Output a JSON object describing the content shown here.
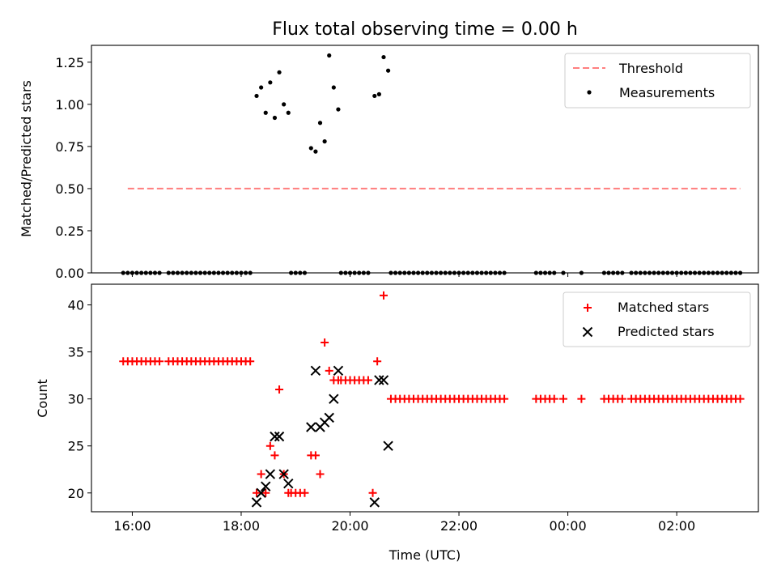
{
  "chart_data": [
    {
      "panel": "top",
      "type": "scatter",
      "title": "Flux total observing time = 0.00 h",
      "xlabel": "",
      "ylabel": "Matched/Predicted stars",
      "ylim": [
        0,
        1.35
      ],
      "yticks": [
        "0.00",
        "0.25",
        "0.50",
        "0.75",
        "1.00",
        "1.25"
      ],
      "legend_position": "top-right",
      "series": [
        {
          "name": "Threshold",
          "kind": "line",
          "color": "#ff7f7f",
          "style": "dashed",
          "x": [
            "15:55",
            "03:10"
          ],
          "y": [
            0.5,
            0.5
          ]
        },
        {
          "name": "Measurements",
          "kind": "dots",
          "color": "#000000",
          "points": [
            [
              "18:17",
              1.05
            ],
            [
              "18:22",
              1.1
            ],
            [
              "18:27",
              0.95
            ],
            [
              "18:32",
              1.13
            ],
            [
              "18:37",
              0.92
            ],
            [
              "18:42",
              1.19
            ],
            [
              "18:47",
              1.0
            ],
            [
              "18:52",
              0.95
            ],
            [
              "19:17",
              0.74
            ],
            [
              "19:22",
              0.72
            ],
            [
              "19:27",
              0.89
            ],
            [
              "19:32",
              0.78
            ],
            [
              "19:37",
              1.29
            ],
            [
              "19:42",
              1.1
            ],
            [
              "19:47",
              0.97
            ],
            [
              "20:27",
              1.05
            ],
            [
              "20:32",
              1.06
            ],
            [
              "20:37",
              1.28
            ],
            [
              "20:42",
              1.2
            ]
          ],
          "zero_times": [
            "15:50",
            "15:55",
            "16:00",
            "16:05",
            "16:10",
            "16:15",
            "16:20",
            "16:25",
            "16:30",
            "16:40",
            "16:45",
            "16:50",
            "16:55",
            "17:00",
            "17:05",
            "17:10",
            "17:15",
            "17:20",
            "17:25",
            "17:30",
            "17:35",
            "17:40",
            "17:45",
            "17:50",
            "17:55",
            "18:00",
            "18:05",
            "18:10",
            "18:55",
            "19:00",
            "19:05",
            "19:10",
            "19:50",
            "19:55",
            "20:00",
            "20:05",
            "20:10",
            "20:15",
            "20:20",
            "20:45",
            "20:50",
            "20:55",
            "21:00",
            "21:05",
            "21:10",
            "21:15",
            "21:20",
            "21:25",
            "21:30",
            "21:35",
            "21:40",
            "21:45",
            "21:50",
            "21:55",
            "22:00",
            "22:05",
            "22:10",
            "22:15",
            "22:20",
            "22:25",
            "22:30",
            "22:35",
            "22:40",
            "22:45",
            "22:50",
            "23:25",
            "23:30",
            "23:35",
            "23:40",
            "23:45",
            "23:55",
            "00:15",
            "00:40",
            "00:45",
            "00:50",
            "00:55",
            "01:00",
            "01:10",
            "01:15",
            "01:20",
            "01:25",
            "01:30",
            "01:35",
            "01:40",
            "01:45",
            "01:50",
            "01:55",
            "02:00",
            "02:05",
            "02:10",
            "02:15",
            "02:20",
            "02:25",
            "02:30",
            "02:35",
            "02:40",
            "02:45",
            "02:50",
            "02:55",
            "03:00",
            "03:05",
            "03:10"
          ]
        }
      ]
    },
    {
      "panel": "bottom",
      "type": "scatter",
      "title": "",
      "xlabel": "Time (UTC)",
      "ylabel": "Count",
      "xlim": [
        "15:15",
        "03:30"
      ],
      "xticks": [
        "16:00",
        "18:00",
        "20:00",
        "22:00",
        "00:00",
        "02:00"
      ],
      "ylim": [
        18,
        42.2
      ],
      "yticks": [
        "20",
        "25",
        "30",
        "35",
        "40"
      ],
      "legend_position": "top-right",
      "series": [
        {
          "name": "Matched stars",
          "marker": "plus",
          "color": "#ff0000",
          "points": [
            [
              "15:50",
              34
            ],
            [
              "15:55",
              34
            ],
            [
              "16:00",
              34
            ],
            [
              "16:05",
              34
            ],
            [
              "16:10",
              34
            ],
            [
              "16:15",
              34
            ],
            [
              "16:20",
              34
            ],
            [
              "16:25",
              34
            ],
            [
              "16:30",
              34
            ],
            [
              "16:40",
              34
            ],
            [
              "16:45",
              34
            ],
            [
              "16:50",
              34
            ],
            [
              "16:55",
              34
            ],
            [
              "17:00",
              34
            ],
            [
              "17:05",
              34
            ],
            [
              "17:10",
              34
            ],
            [
              "17:15",
              34
            ],
            [
              "17:20",
              34
            ],
            [
              "17:25",
              34
            ],
            [
              "17:30",
              34
            ],
            [
              "17:35",
              34
            ],
            [
              "17:40",
              34
            ],
            [
              "17:45",
              34
            ],
            [
              "17:50",
              34
            ],
            [
              "17:55",
              34
            ],
            [
              "18:00",
              34
            ],
            [
              "18:05",
              34
            ],
            [
              "18:10",
              34
            ],
            [
              "18:17",
              20
            ],
            [
              "18:22",
              22
            ],
            [
              "18:27",
              20
            ],
            [
              "18:32",
              25
            ],
            [
              "18:37",
              24
            ],
            [
              "18:42",
              31
            ],
            [
              "18:47",
              22
            ],
            [
              "18:52",
              20
            ],
            [
              "18:55",
              20
            ],
            [
              "19:00",
              20
            ],
            [
              "19:05",
              20
            ],
            [
              "19:10",
              20
            ],
            [
              "19:17",
              24
            ],
            [
              "19:22",
              24
            ],
            [
              "19:27",
              22
            ],
            [
              "19:32",
              36
            ],
            [
              "19:37",
              33
            ],
            [
              "19:42",
              32
            ],
            [
              "19:47",
              32
            ],
            [
              "19:50",
              32
            ],
            [
              "19:55",
              32
            ],
            [
              "20:00",
              32
            ],
            [
              "20:05",
              32
            ],
            [
              "20:10",
              32
            ],
            [
              "20:15",
              32
            ],
            [
              "20:20",
              32
            ],
            [
              "20:25",
              20
            ],
            [
              "20:30",
              34
            ],
            [
              "20:37",
              41
            ],
            [
              "20:45",
              30
            ],
            [
              "20:50",
              30
            ],
            [
              "20:55",
              30
            ],
            [
              "21:00",
              30
            ],
            [
              "21:05",
              30
            ],
            [
              "21:10",
              30
            ],
            [
              "21:15",
              30
            ],
            [
              "21:20",
              30
            ],
            [
              "21:25",
              30
            ],
            [
              "21:30",
              30
            ],
            [
              "21:35",
              30
            ],
            [
              "21:40",
              30
            ],
            [
              "21:45",
              30
            ],
            [
              "21:50",
              30
            ],
            [
              "21:55",
              30
            ],
            [
              "22:00",
              30
            ],
            [
              "22:05",
              30
            ],
            [
              "22:10",
              30
            ],
            [
              "22:15",
              30
            ],
            [
              "22:20",
              30
            ],
            [
              "22:25",
              30
            ],
            [
              "22:30",
              30
            ],
            [
              "22:35",
              30
            ],
            [
              "22:40",
              30
            ],
            [
              "22:45",
              30
            ],
            [
              "22:50",
              30
            ],
            [
              "23:25",
              30
            ],
            [
              "23:30",
              30
            ],
            [
              "23:35",
              30
            ],
            [
              "23:40",
              30
            ],
            [
              "23:45",
              30
            ],
            [
              "23:55",
              30
            ],
            [
              "00:15",
              30
            ],
            [
              "00:40",
              30
            ],
            [
              "00:45",
              30
            ],
            [
              "00:50",
              30
            ],
            [
              "00:55",
              30
            ],
            [
              "01:00",
              30
            ],
            [
              "01:10",
              30
            ],
            [
              "01:15",
              30
            ],
            [
              "01:20",
              30
            ],
            [
              "01:25",
              30
            ],
            [
              "01:30",
              30
            ],
            [
              "01:35",
              30
            ],
            [
              "01:40",
              30
            ],
            [
              "01:45",
              30
            ],
            [
              "01:50",
              30
            ],
            [
              "01:55",
              30
            ],
            [
              "02:00",
              30
            ],
            [
              "02:05",
              30
            ],
            [
              "02:10",
              30
            ],
            [
              "02:15",
              30
            ],
            [
              "02:20",
              30
            ],
            [
              "02:25",
              30
            ],
            [
              "02:30",
              30
            ],
            [
              "02:35",
              30
            ],
            [
              "02:40",
              30
            ],
            [
              "02:45",
              30
            ],
            [
              "02:50",
              30
            ],
            [
              "02:55",
              30
            ],
            [
              "03:00",
              30
            ],
            [
              "03:05",
              30
            ],
            [
              "03:10",
              30
            ]
          ]
        },
        {
          "name": "Predicted stars",
          "marker": "x",
          "color": "#000000",
          "points": [
            [
              "18:17",
              19
            ],
            [
              "18:22",
              20
            ],
            [
              "18:27",
              20.7
            ],
            [
              "18:32",
              22
            ],
            [
              "18:37",
              26
            ],
            [
              "18:42",
              26
            ],
            [
              "18:47",
              22
            ],
            [
              "18:52",
              21
            ],
            [
              "19:17",
              27
            ],
            [
              "19:22",
              33
            ],
            [
              "19:27",
              27
            ],
            [
              "19:32",
              27.5
            ],
            [
              "19:37",
              28
            ],
            [
              "19:42",
              30
            ],
            [
              "19:47",
              33
            ],
            [
              "20:27",
              19
            ],
            [
              "20:32",
              32
            ],
            [
              "20:37",
              32
            ],
            [
              "20:42",
              25
            ]
          ]
        }
      ]
    }
  ]
}
